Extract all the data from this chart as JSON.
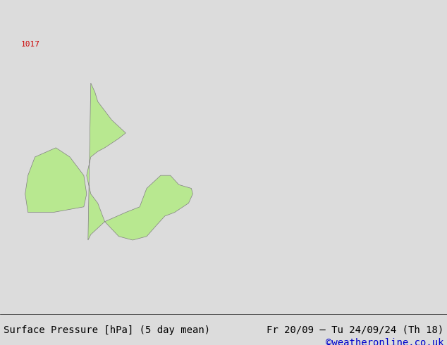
{
  "title_left": "Surface Pressure [hPa] (5 day mean)",
  "title_right": "Fr 20/09 — Tu 24/09/24 (Th 18)",
  "watermark": "©weatheronline.co.uk",
  "bg_color": "#dcdcdc",
  "ocean_color": "#dcdcdc",
  "land_color": "#b8e890",
  "coast_color": "#808080",
  "border_color": "#a0a0b8",
  "isobar_red_color": "#cc0000",
  "isobar_black_color": "#000000",
  "label_1017": "1017",
  "label_fontsize": 8,
  "footer_fontsize": 10,
  "watermark_color": "#0000cc",
  "fig_width": 6.34,
  "fig_height": 4.9,
  "lon_min": -12.0,
  "lon_max": 20.0,
  "lat_min": 46.0,
  "lat_max": 63.0
}
